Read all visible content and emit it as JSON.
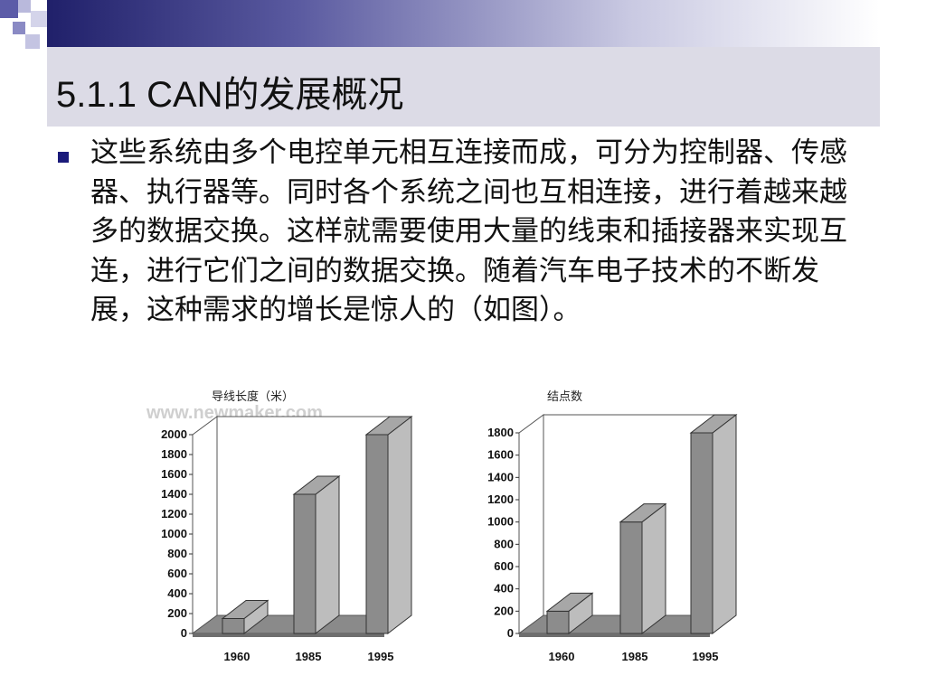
{
  "slide": {
    "title": "5.1.1 CAN的发展概况",
    "body": "这些系统由多个电控单元相互连接而成，可分为控制器、传感器、执行器等。同时各个系统之间也互相连接，进行着越来越多的数据交换。这样就需要使用大量的线束和插接器来实现互连，进行它们之间的数据交换。随着汽车电子技术的不断发展，这种需求的增长是惊人的（如图）。",
    "watermark": "www.newmaker.com",
    "colors": {
      "title_bar": "#dcdbe6",
      "bullet": "#1a1a7a",
      "bar_front": "#8c8c8c",
      "bar_side": "#bdbdbd",
      "bar_top": "#a7a7a7"
    }
  },
  "chart_data": [
    {
      "type": "bar",
      "title": "导线长度（米）",
      "categories": [
        "1960",
        "1985",
        "1995"
      ],
      "values": [
        150,
        1400,
        2000
      ],
      "ylim": [
        0,
        2000
      ],
      "yticks": [
        "0",
        "200",
        "400",
        "600",
        "800",
        "1000",
        "1200",
        "1400",
        "1600",
        "1800",
        "2000"
      ],
      "style": "3d"
    },
    {
      "type": "bar",
      "title": "结点数",
      "categories": [
        "1960",
        "1985",
        "1995"
      ],
      "values": [
        200,
        1000,
        1800
      ],
      "ylim": [
        0,
        1800
      ],
      "yticks": [
        "0",
        "200",
        "400",
        "600",
        "800",
        "1000",
        "1200",
        "1400",
        "1600",
        "1800"
      ],
      "style": "3d"
    }
  ]
}
